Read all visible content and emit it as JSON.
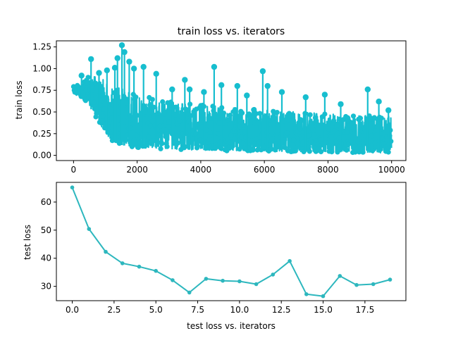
{
  "chart_data": [
    {
      "type": "line",
      "title": "train loss vs. iterators",
      "xlabel": "",
      "ylabel": "train loss",
      "xlim": [
        -540,
        10450
      ],
      "ylim": [
        -0.06,
        1.32
      ],
      "xticks": [
        0,
        2000,
        4000,
        6000,
        8000,
        10000
      ],
      "yticks": [
        0.0,
        0.25,
        0.5,
        0.75,
        1.0,
        1.25
      ],
      "xtick_labels": [
        "0",
        "2000",
        "4000",
        "6000",
        "8000",
        "10000"
      ],
      "ytick_labels": [
        "0.00",
        "0.25",
        "0.50",
        "0.75",
        "1.00",
        "1.25"
      ],
      "series": [
        {
          "color": "#17becf",
          "marker": "circle",
          "samples": 10000,
          "envelope_x": [
            0,
            200,
            400,
            600,
            800,
            1000,
            1200,
            1500,
            2000,
            3000,
            4000,
            5000,
            6000,
            7000,
            8000,
            9000,
            9999
          ],
          "envelope_low": [
            0.7,
            0.68,
            0.62,
            0.5,
            0.38,
            0.26,
            0.17,
            0.12,
            0.09,
            0.07,
            0.06,
            0.05,
            0.05,
            0.04,
            0.04,
            0.03,
            0.03
          ],
          "envelope_high": [
            0.8,
            0.82,
            0.9,
            0.92,
            0.9,
            0.86,
            0.8,
            0.78,
            0.7,
            0.62,
            0.58,
            0.55,
            0.52,
            0.5,
            0.48,
            0.46,
            0.45
          ],
          "spikes": [
            {
              "x": 250,
              "y": 0.92
            },
            {
              "x": 550,
              "y": 1.11
            },
            {
              "x": 800,
              "y": 0.95
            },
            {
              "x": 1050,
              "y": 0.98
            },
            {
              "x": 1300,
              "y": 1.01
            },
            {
              "x": 1380,
              "y": 1.12
            },
            {
              "x": 1520,
              "y": 1.27
            },
            {
              "x": 1600,
              "y": 1.19
            },
            {
              "x": 1750,
              "y": 1.08
            },
            {
              "x": 1900,
              "y": 1.0
            },
            {
              "x": 2200,
              "y": 1.02
            },
            {
              "x": 2600,
              "y": 0.94
            },
            {
              "x": 3100,
              "y": 0.76
            },
            {
              "x": 3500,
              "y": 0.87
            },
            {
              "x": 3650,
              "y": 0.76
            },
            {
              "x": 4100,
              "y": 0.73
            },
            {
              "x": 4420,
              "y": 1.02
            },
            {
              "x": 4650,
              "y": 0.81
            },
            {
              "x": 5150,
              "y": 0.8
            },
            {
              "x": 5450,
              "y": 0.69
            },
            {
              "x": 5950,
              "y": 0.97
            },
            {
              "x": 6100,
              "y": 0.8
            },
            {
              "x": 6550,
              "y": 0.73
            },
            {
              "x": 7300,
              "y": 0.67
            },
            {
              "x": 7900,
              "y": 0.7
            },
            {
              "x": 8400,
              "y": 0.59
            },
            {
              "x": 9250,
              "y": 0.76
            },
            {
              "x": 9600,
              "y": 0.62
            },
            {
              "x": 9900,
              "y": 0.52
            }
          ]
        }
      ]
    },
    {
      "type": "line",
      "title": "",
      "xlabel": "test loss vs. iterators",
      "ylabel": "test loss",
      "xlim": [
        -0.95,
        19.95
      ],
      "ylim": [
        24.9,
        67.0
      ],
      "xticks": [
        0.0,
        2.5,
        5.0,
        7.5,
        10.0,
        12.5,
        15.0,
        17.5
      ],
      "yticks": [
        30,
        40,
        50,
        60
      ],
      "xtick_labels": [
        "0.0",
        "2.5",
        "5.0",
        "7.5",
        "10.0",
        "12.5",
        "15.0",
        "17.5"
      ],
      "ytick_labels": [
        "30",
        "40",
        "50",
        "60"
      ],
      "series": [
        {
          "color": "#2db7be",
          "marker": "circle",
          "x": [
            0,
            1,
            2,
            3,
            4,
            5,
            6,
            7,
            8,
            9,
            10,
            11,
            12,
            13,
            14,
            15,
            16,
            17,
            18,
            19
          ],
          "y": [
            65.2,
            50.4,
            42.3,
            38.2,
            37.0,
            35.5,
            32.2,
            27.8,
            32.7,
            32.0,
            31.8,
            30.8,
            34.2,
            39.0,
            27.2,
            26.5,
            33.7,
            30.5,
            30.8,
            32.4
          ]
        }
      ]
    }
  ]
}
